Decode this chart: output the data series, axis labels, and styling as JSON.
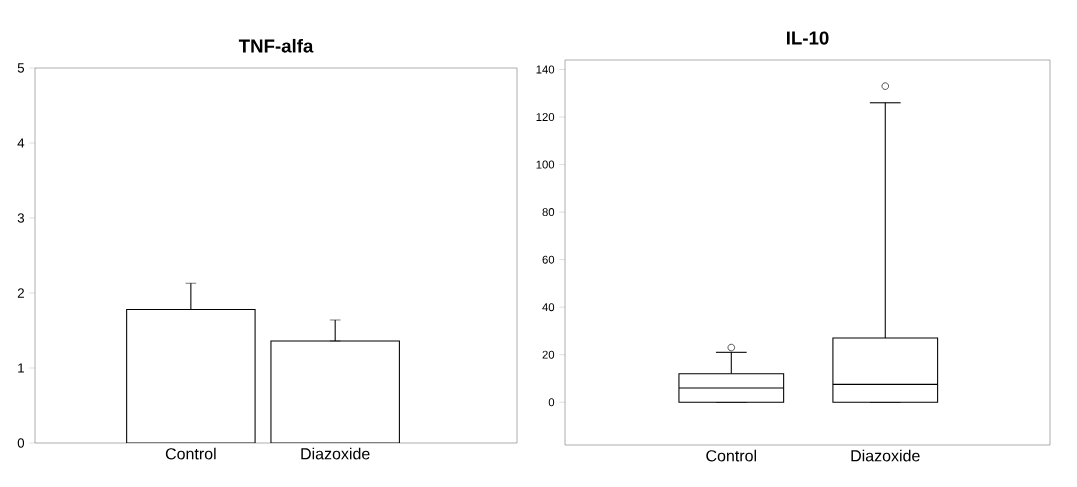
{
  "chart_data": [
    {
      "type": "bar",
      "title": "TNF-alfa",
      "categories": [
        "Control",
        "Diazoxide"
      ],
      "values": [
        1.78,
        1.36
      ],
      "errors": [
        [
          1.78,
          2.13
        ],
        [
          1.36,
          1.64
        ]
      ],
      "color": "#ffffff",
      "ylim": [
        0,
        5
      ],
      "yticks": [
        0,
        1,
        2,
        3,
        4,
        5
      ]
    },
    {
      "type": "box",
      "title": "IL-10",
      "categories": [
        "Control",
        "Diazoxide"
      ],
      "boxes": [
        {
          "low": 0,
          "q1": 0,
          "median": 6,
          "q3": 12,
          "high": 21,
          "outliers": [
            23
          ]
        },
        {
          "low": 0,
          "q1": 0,
          "median": 7.5,
          "q3": 27,
          "high": 126,
          "outliers": [
            133
          ]
        }
      ],
      "ylim": [
        -18,
        144
      ],
      "yticks": [
        0,
        20,
        40,
        60,
        80,
        100,
        120,
        140
      ]
    }
  ]
}
